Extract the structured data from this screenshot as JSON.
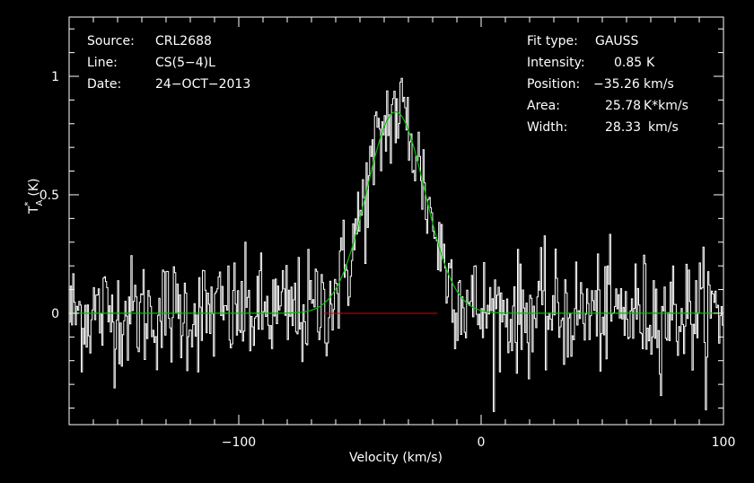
{
  "header": {
    "left": [
      {
        "label": "Source:",
        "value": "CRL2688"
      },
      {
        "label": "Line:",
        "value": "CS(5−4)L"
      },
      {
        "label": "Date:",
        "value": "24−OCT−2013"
      }
    ],
    "fit": {
      "type_label": "Fit type:",
      "type_value": "GAUSS",
      "intensity_label": "Intensity:",
      "intensity_value": "0.85",
      "intensity_unit": "K",
      "position_label": "Position:",
      "position_value": "−35.26",
      "position_unit": "km/s",
      "area_label": "Area:",
      "area_value": "25.78",
      "area_unit": "K*km/s",
      "width_label": "Width:",
      "width_value": "28.33",
      "width_unit": "km/s"
    }
  },
  "colors": {
    "background": "#000000",
    "spectrum": "#ffffff",
    "fit": "#00c000",
    "baseline": "#e00000",
    "axes": "#ffffff"
  },
  "chart_data": {
    "type": "line",
    "title": "",
    "xlabel": "Velocity (km/s)",
    "ylabel_main": "T",
    "ylabel_sub": "A",
    "ylabel_sup": "*",
    "ylabel_unit": "(K)",
    "xlim": [
      -170,
      100
    ],
    "ylim": [
      -0.47,
      1.25
    ],
    "x_ticks": [
      -100,
      0,
      100
    ],
    "x_tick_labels": [
      "−100",
      "0",
      "100"
    ],
    "y_ticks": [
      0,
      0.5,
      1
    ],
    "y_tick_labels": [
      "0",
      "0.5",
      "1"
    ],
    "series": [
      {
        "kind": "spectrum",
        "noise_rms": 0.12,
        "channel_width_kms": 0.5
      },
      {
        "kind": "gaussian_fit",
        "amplitude": 0.85,
        "center": -35.26,
        "fwhm": 28.33
      },
      {
        "kind": "baseline",
        "y": 0,
        "x_range": [
          -65,
          -18
        ]
      }
    ]
  }
}
